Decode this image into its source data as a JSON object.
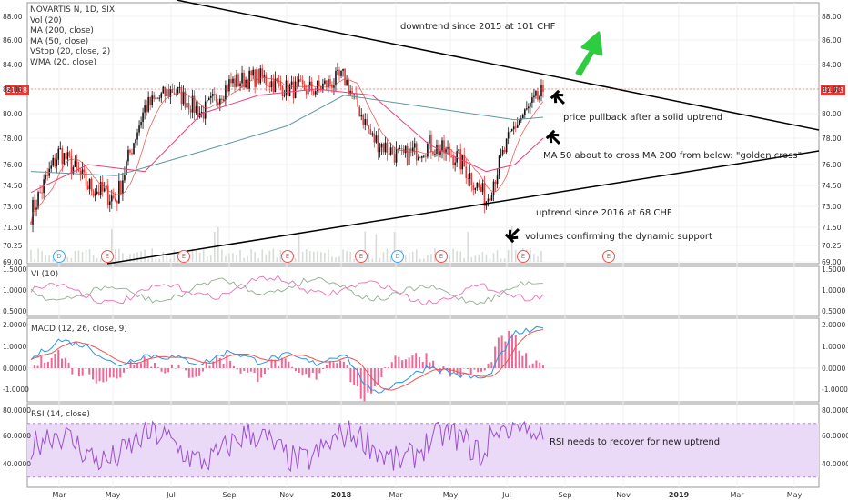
{
  "header": {
    "title": "NOVARTIS N, 1D, SIX",
    "indicators": [
      "Vol (20)",
      "MA (200, close)",
      "MA (50, close)",
      "VStop (20, close, 2)",
      "WMA (20, close)"
    ]
  },
  "colors": {
    "price_line": "#e53935",
    "ma200": "#5b9aa0",
    "ma50": "#ec407a",
    "wma": "#e53935",
    "vi_plus": "#8fae8f",
    "vi_minus": "#f06fb6",
    "macd": "#2196f3",
    "signal": "#ef5350",
    "hist": "#ec407a",
    "rsi": "#9c4fd1",
    "rsi_band": "#ead9f7",
    "trendline": "#000000",
    "arrow_up": "#2ecc40",
    "arrow_black": "#000000"
  },
  "chart_data": [
    {
      "type": "candlestick",
      "pane": "price",
      "title": "NOVARTIS N, 1D, SIX",
      "y_ticks": [
        "88.00",
        "86.00",
        "84.00",
        "82.00",
        "80.00",
        "78.00",
        "76.00",
        "74.50",
        "73.00",
        "71.50",
        "70.25",
        "69.00"
      ],
      "x_ticks": [
        "Mar",
        "May",
        "Jul",
        "Sep",
        "Nov",
        "2018",
        "Mar",
        "May",
        "Jul",
        "Sep",
        "Nov",
        "2019",
        "Mar",
        "May"
      ],
      "x_ticks_bold": [
        false,
        false,
        false,
        false,
        false,
        true,
        false,
        false,
        false,
        false,
        false,
        true,
        false,
        false
      ],
      "last_price": "81.78",
      "series": [
        {
          "name": "close",
          "x": [
            "2017-02",
            "2017-03",
            "2017-04",
            "2017-05",
            "2017-06",
            "2017-07",
            "2017-08",
            "2017-09",
            "2017-10",
            "2017-11",
            "2017-12",
            "2018-01",
            "2018-02",
            "2018-03",
            "2018-04",
            "2018-05",
            "2018-06",
            "2018-07",
            "2018-08"
          ],
          "values": [
            72.5,
            77.0,
            74.5,
            73.5,
            80.5,
            82.0,
            80.0,
            82.5,
            83.0,
            82.0,
            82.0,
            83.0,
            78.0,
            76.5,
            77.5,
            76.5,
            73.5,
            79.0,
            81.78
          ]
        },
        {
          "name": "MA (200, close)",
          "x": [
            "2017-02",
            "2017-05",
            "2017-08",
            "2017-11",
            "2018-01",
            "2018-04",
            "2018-07",
            "2018-08"
          ],
          "values": [
            75.5,
            75.2,
            77.0,
            79.0,
            81.5,
            80.5,
            79.5,
            79.7
          ]
        },
        {
          "name": "MA (50, close)",
          "x": [
            "2017-02",
            "2017-04",
            "2017-06",
            "2017-08",
            "2017-10",
            "2017-12",
            "2018-02",
            "2018-04",
            "2018-06",
            "2018-07",
            "2018-08"
          ],
          "values": [
            74.0,
            76.0,
            75.5,
            80.0,
            81.5,
            82.0,
            81.5,
            77.5,
            75.5,
            76.0,
            78.0
          ]
        }
      ],
      "volume_events": [
        "D",
        "E",
        "E",
        "E",
        "E",
        "D",
        "E",
        "E",
        "E",
        "E"
      ],
      "annotations": [
        "downtrend since 2015 at 101 CHF",
        "price pullback after a solid uptrend",
        "MA 50 about to cross MA 200 from below: \"golden cross\"",
        "uptrend since 2016 at 68 CHF",
        "volumes confirming the dynamic support"
      ]
    },
    {
      "type": "line",
      "pane": "vi",
      "title": "VI (10)",
      "y_ticks": [
        "1.5000",
        "1.0000",
        "0.5000"
      ],
      "series": [
        {
          "name": "VI+"
        },
        {
          "name": "VI-"
        }
      ]
    },
    {
      "type": "line",
      "pane": "macd",
      "title": "MACD (12, 26, close, 9)",
      "y_ticks": [
        "2.0000",
        "1.0000",
        "0.0000",
        "-1.0000"
      ],
      "series": [
        {
          "name": "MACD"
        },
        {
          "name": "Signal"
        },
        {
          "name": "Histogram"
        }
      ]
    },
    {
      "type": "line",
      "pane": "rsi",
      "title": "RSI (14, close)",
      "y_ticks": [
        "80.0000",
        "60.0000",
        "40.0000"
      ],
      "band": [
        30,
        70
      ],
      "annotations": [
        "RSI needs to recover for new uptrend"
      ]
    }
  ]
}
